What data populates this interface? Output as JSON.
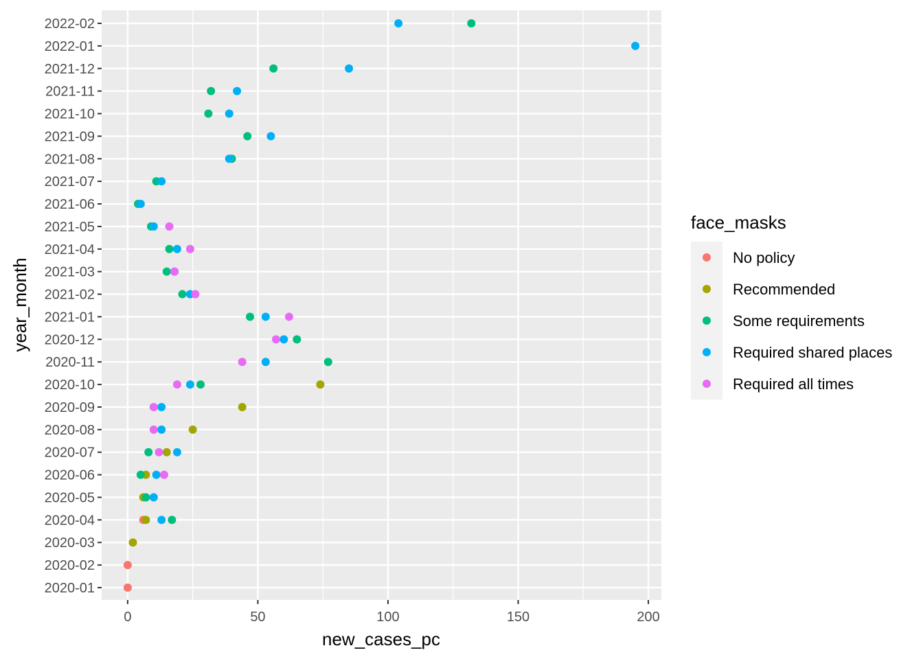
{
  "chart_data": {
    "type": "scatter",
    "title": "",
    "xlabel": "new_cases_pc",
    "ylabel": "year_month",
    "xlim": [
      -10,
      205
    ],
    "x_ticks": [
      0,
      50,
      100,
      150,
      200
    ],
    "grid": true,
    "legend": {
      "title": "face_masks",
      "placement": "right"
    },
    "categories": [
      "2020-01",
      "2020-02",
      "2020-03",
      "2020-04",
      "2020-05",
      "2020-06",
      "2020-07",
      "2020-08",
      "2020-09",
      "2020-10",
      "2020-11",
      "2020-12",
      "2021-01",
      "2021-02",
      "2021-03",
      "2021-04",
      "2021-05",
      "2021-06",
      "2021-07",
      "2021-08",
      "2021-09",
      "2021-10",
      "2021-11",
      "2021-12",
      "2022-01",
      "2022-02"
    ],
    "series": [
      {
        "name": "No policy",
        "color": "#F8766D",
        "points": [
          {
            "x": 0,
            "y": "2020-01"
          },
          {
            "x": 0,
            "y": "2020-02"
          },
          {
            "x": 6,
            "y": "2020-04"
          }
        ]
      },
      {
        "name": "Recommended",
        "color": "#A3A500",
        "points": [
          {
            "x": 2,
            "y": "2020-03"
          },
          {
            "x": 7,
            "y": "2020-04"
          },
          {
            "x": 6,
            "y": "2020-05"
          },
          {
            "x": 7,
            "y": "2020-06"
          },
          {
            "x": 15,
            "y": "2020-07"
          },
          {
            "x": 25,
            "y": "2020-08"
          },
          {
            "x": 44,
            "y": "2020-09"
          },
          {
            "x": 74,
            "y": "2020-10"
          }
        ]
      },
      {
        "name": "Some requirements",
        "color": "#00BF7D",
        "points": [
          {
            "x": 17,
            "y": "2020-04"
          },
          {
            "x": 7,
            "y": "2020-05"
          },
          {
            "x": 5,
            "y": "2020-06"
          },
          {
            "x": 8,
            "y": "2020-07"
          },
          {
            "x": 28,
            "y": "2020-10"
          },
          {
            "x": 77,
            "y": "2020-11"
          },
          {
            "x": 65,
            "y": "2020-12"
          },
          {
            "x": 47,
            "y": "2021-01"
          },
          {
            "x": 21,
            "y": "2021-02"
          },
          {
            "x": 15,
            "y": "2021-03"
          },
          {
            "x": 16,
            "y": "2021-04"
          },
          {
            "x": 9,
            "y": "2021-05"
          },
          {
            "x": 4,
            "y": "2021-06"
          },
          {
            "x": 11,
            "y": "2021-07"
          },
          {
            "x": 40,
            "y": "2021-08"
          },
          {
            "x": 46,
            "y": "2021-09"
          },
          {
            "x": 31,
            "y": "2021-10"
          },
          {
            "x": 32,
            "y": "2021-11"
          },
          {
            "x": 56,
            "y": "2021-12"
          },
          {
            "x": 132,
            "y": "2022-02"
          }
        ]
      },
      {
        "name": "Required shared places",
        "color": "#00B0F6",
        "points": [
          {
            "x": 13,
            "y": "2020-04"
          },
          {
            "x": 10,
            "y": "2020-05"
          },
          {
            "x": 11,
            "y": "2020-06"
          },
          {
            "x": 19,
            "y": "2020-07"
          },
          {
            "x": 13,
            "y": "2020-08"
          },
          {
            "x": 13,
            "y": "2020-09"
          },
          {
            "x": 24,
            "y": "2020-10"
          },
          {
            "x": 53,
            "y": "2020-11"
          },
          {
            "x": 60,
            "y": "2020-12"
          },
          {
            "x": 53,
            "y": "2021-01"
          },
          {
            "x": 24,
            "y": "2021-02"
          },
          {
            "x": 18,
            "y": "2021-03"
          },
          {
            "x": 19,
            "y": "2021-04"
          },
          {
            "x": 10,
            "y": "2021-05"
          },
          {
            "x": 5,
            "y": "2021-06"
          },
          {
            "x": 13,
            "y": "2021-07"
          },
          {
            "x": 39,
            "y": "2021-08"
          },
          {
            "x": 55,
            "y": "2021-09"
          },
          {
            "x": 39,
            "y": "2021-10"
          },
          {
            "x": 42,
            "y": "2021-11"
          },
          {
            "x": 85,
            "y": "2021-12"
          },
          {
            "x": 195,
            "y": "2022-01"
          },
          {
            "x": 104,
            "y": "2022-02"
          }
        ]
      },
      {
        "name": "Required all times",
        "color": "#E76BF3",
        "points": [
          {
            "x": 14,
            "y": "2020-06"
          },
          {
            "x": 12,
            "y": "2020-07"
          },
          {
            "x": 10,
            "y": "2020-08"
          },
          {
            "x": 10,
            "y": "2020-09"
          },
          {
            "x": 19,
            "y": "2020-10"
          },
          {
            "x": 44,
            "y": "2020-11"
          },
          {
            "x": 57,
            "y": "2020-12"
          },
          {
            "x": 62,
            "y": "2021-01"
          },
          {
            "x": 26,
            "y": "2021-02"
          },
          {
            "x": 18,
            "y": "2021-03"
          },
          {
            "x": 24,
            "y": "2021-04"
          },
          {
            "x": 16,
            "y": "2021-05"
          }
        ]
      }
    ]
  }
}
